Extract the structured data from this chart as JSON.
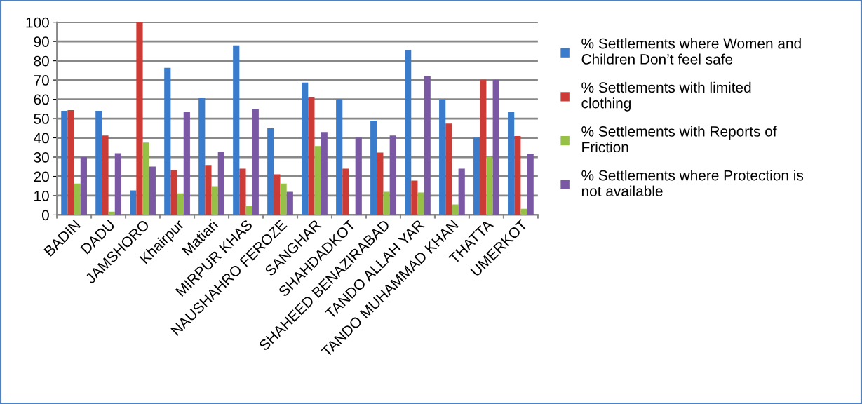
{
  "chart_data": {
    "type": "bar",
    "categories": [
      "BADIN",
      "DADU",
      "JAMSHORO",
      "Khairpur",
      "Matiari",
      "MIRPUR KHAS",
      "NAUSHAHRO FEROZE",
      "SANGHAR",
      "SHAHDADKOT",
      "SHAHEED BENAZIRABAD",
      "TANDO ALLAH YAR",
      "TANDO MUHAMMAD KHAN",
      "THATTA",
      "UMERKOT"
    ],
    "series": [
      {
        "name": "% Settlements where Women and Children Don’t feel safe",
        "color": "#3a7ccb",
        "values": [
          54,
          54,
          12.7,
          76.3,
          60.6,
          88,
          44.9,
          68.7,
          60.1,
          48.9,
          85.5,
          59.9,
          40.1,
          53.3
        ]
      },
      {
        "name": "% Settlements with limited clothing",
        "color": "#cc3b36",
        "values": [
          54.4,
          41.2,
          100,
          23.3,
          25.9,
          24,
          21.1,
          61,
          24,
          32.4,
          17.8,
          47.4,
          70.1,
          40.9
        ]
      },
      {
        "name": "% Settlements with Reports of Friction",
        "color": "#96c046",
        "values": [
          16.3,
          1.7,
          37.6,
          11.2,
          14.9,
          4.6,
          16.3,
          35.7,
          0,
          12,
          11.6,
          5.4,
          30.2,
          3.2
        ]
      },
      {
        "name": "% Settlements where Protection is not available",
        "color": "#7a58a4",
        "values": [
          30,
          32,
          25.1,
          53.3,
          32.8,
          54.8,
          12,
          43,
          40.1,
          41.2,
          72,
          24,
          70.1,
          31.7
        ]
      }
    ],
    "ylim": [
      0,
      100
    ],
    "yticks": [
      0,
      10,
      20,
      30,
      40,
      50,
      60,
      70,
      80,
      90,
      100
    ],
    "grid": "y",
    "legend": "right"
  }
}
